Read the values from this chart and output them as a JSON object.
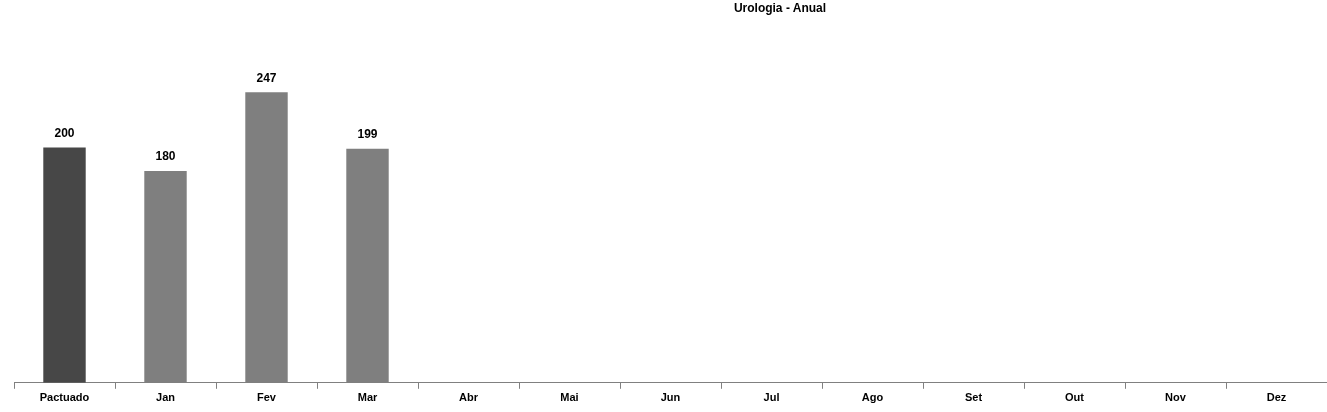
{
  "chart_data": {
    "type": "bar",
    "title": "Urologia - Anual",
    "categories": [
      "Pactuado",
      "Jan",
      "Fev",
      "Mar",
      "Abr",
      "Mai",
      "Jun",
      "Jul",
      "Ago",
      "Set",
      "Out",
      "Nov",
      "Dez"
    ],
    "values": [
      200,
      180,
      247,
      199,
      null,
      null,
      null,
      null,
      null,
      null,
      null,
      null,
      null
    ],
    "colors": [
      "#474747",
      "#7f7f7f",
      "#7f7f7f",
      "#7f7f7f",
      "#7f7f7f",
      "#7f7f7f",
      "#7f7f7f",
      "#7f7f7f",
      "#7f7f7f",
      "#7f7f7f",
      "#7f7f7f",
      "#7f7f7f",
      "#7f7f7f"
    ],
    "data_labels": true,
    "grid": false,
    "legend": false
  }
}
